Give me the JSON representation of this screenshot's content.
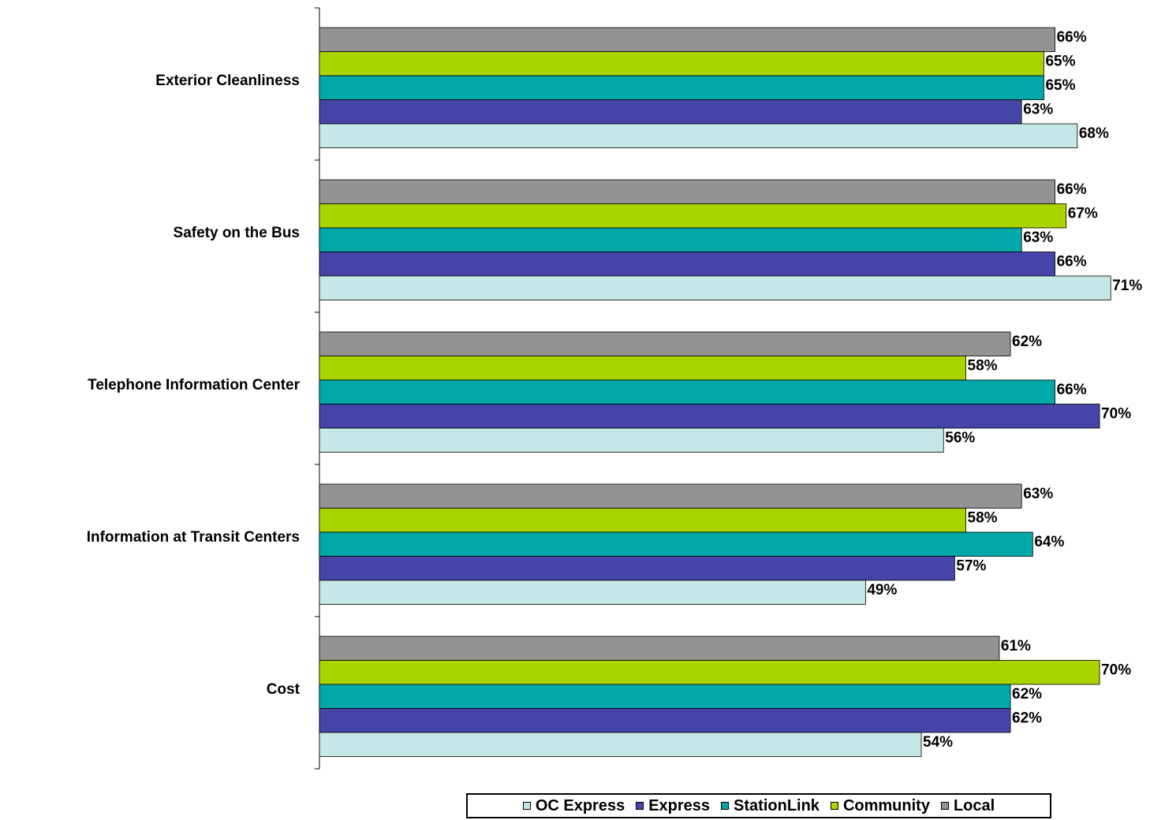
{
  "chart_data": {
    "type": "bar",
    "orientation": "horizontal",
    "categories": [
      "Exterior Cleanliness",
      "Safety on the Bus",
      "Telephone Information Center",
      "Information at Transit Centers",
      "Cost"
    ],
    "series": [
      {
        "name": "Local",
        "color": "#939393",
        "values": [
          66,
          66,
          62,
          63,
          61
        ],
        "labels": [
          "66%",
          "66%",
          "62%",
          "63%",
          "61%"
        ]
      },
      {
        "name": "Community",
        "color": "#aad400",
        "values": [
          65,
          67,
          58,
          58,
          70
        ],
        "labels": [
          "65%",
          "67%",
          "58%",
          "58%",
          "70%"
        ]
      },
      {
        "name": "StationLink",
        "color": "#00a8a8",
        "values": [
          65,
          63,
          66,
          64,
          62
        ],
        "labels": [
          "65%",
          "63%",
          "66%",
          "64%",
          "62%"
        ]
      },
      {
        "name": "Express",
        "color": "#4545a8",
        "values": [
          63,
          66,
          70,
          57,
          62
        ],
        "labels": [
          "63%",
          "66%",
          "70%",
          "57%",
          "62%"
        ]
      },
      {
        "name": "OC Express",
        "color": "#c6e7e7",
        "values": [
          68,
          71,
          56,
          49,
          54
        ],
        "labels": [
          "68%",
          "71%",
          "56%",
          "49%",
          "54%"
        ]
      }
    ],
    "xlim": [
      0,
      71
    ],
    "grid": false,
    "legend_position": "bottom",
    "legend_order": [
      "OC Express",
      "Express",
      "StationLink",
      "Community",
      "Local"
    ]
  }
}
